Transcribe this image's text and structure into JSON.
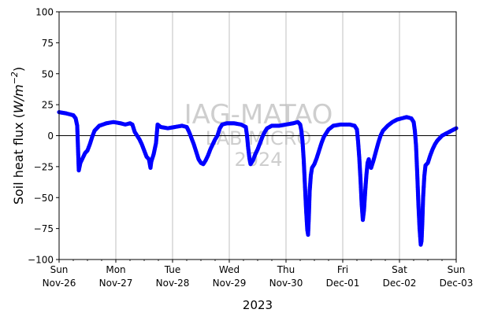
{
  "chart_data": {
    "type": "scatter",
    "ylabel_prefix": "Soil heat flux (",
    "ylabel_unit": "W/m",
    "ylabel_exp": "−2",
    "ylabel_suffix": ")",
    "xlabel": "2023",
    "ylim": [
      -100,
      100
    ],
    "yticks": [
      -100,
      -75,
      -50,
      -25,
      0,
      25,
      50,
      75,
      100
    ],
    "xlim": [
      "2023-11-26",
      "2023-12-03"
    ],
    "xticks": [
      {
        "date": "2023-11-26",
        "day": "Sun",
        "label": "Nov-26"
      },
      {
        "date": "2023-11-27",
        "day": "Mon",
        "label": "Nov-27"
      },
      {
        "date": "2023-11-28",
        "day": "Tue",
        "label": "Nov-28"
      },
      {
        "date": "2023-11-29",
        "day": "Wed",
        "label": "Nov-29"
      },
      {
        "date": "2023-11-30",
        "day": "Thu",
        "label": "Nov-30"
      },
      {
        "date": "2023-12-01",
        "day": "Fri",
        "label": "Dec-01"
      },
      {
        "date": "2023-12-02",
        "day": "Sat",
        "label": "Dec-02"
      },
      {
        "date": "2023-12-03",
        "day": "Sun",
        "label": "Dec-03"
      }
    ],
    "grid": "vertical",
    "zero_line": true,
    "marker_color": "#0000ff",
    "watermark": [
      "IAG-MATAO",
      "LAB MICRO",
      "2024"
    ],
    "series": [
      {
        "points": [
          [
            "2023-11-26 00:00",
            19
          ],
          [
            "2023-11-26 03:00",
            18
          ],
          [
            "2023-11-26 06:00",
            16.5
          ],
          [
            "2023-11-26 07:00",
            14
          ],
          [
            "2023-11-26 07:40",
            8
          ],
          [
            "2023-11-26 08:00",
            -10
          ],
          [
            "2023-11-26 08:20",
            -28
          ],
          [
            "2023-11-26 09:00",
            -22
          ],
          [
            "2023-11-26 10:00",
            -18
          ],
          [
            "2023-11-26 11:00",
            -14
          ],
          [
            "2023-11-26 12:00",
            -12
          ],
          [
            "2023-11-26 13:00",
            -7
          ],
          [
            "2023-11-26 14:00",
            -1
          ],
          [
            "2023-11-26 15:00",
            4
          ],
          [
            "2023-11-26 17:00",
            8
          ],
          [
            "2023-11-26 20:00",
            10
          ],
          [
            "2023-11-26 23:00",
            11
          ],
          [
            "2023-11-27 02:00",
            10
          ],
          [
            "2023-11-27 04:00",
            9
          ],
          [
            "2023-11-27 06:00",
            10
          ],
          [
            "2023-11-27 07:00",
            9
          ],
          [
            "2023-11-27 08:00",
            3
          ],
          [
            "2023-11-27 09:00",
            0
          ],
          [
            "2023-11-27 10:00",
            -3
          ],
          [
            "2023-11-27 11:00",
            -7
          ],
          [
            "2023-11-27 12:00",
            -12
          ],
          [
            "2023-11-27 13:00",
            -17
          ],
          [
            "2023-11-27 14:00",
            -19
          ],
          [
            "2023-11-27 14:40",
            -26
          ],
          [
            "2023-11-27 15:00",
            -21
          ],
          [
            "2023-11-27 16:00",
            -15
          ],
          [
            "2023-11-27 17:00",
            -6
          ],
          [
            "2023-11-27 17:40",
            9
          ],
          [
            "2023-11-27 19:00",
            7
          ],
          [
            "2023-11-27 22:00",
            6
          ],
          [
            "2023-11-28 01:00",
            7
          ],
          [
            "2023-11-28 04:00",
            8
          ],
          [
            "2023-11-28 06:00",
            7
          ],
          [
            "2023-11-28 07:00",
            3
          ],
          [
            "2023-11-28 08:00",
            -2
          ],
          [
            "2023-11-28 09:00",
            -7
          ],
          [
            "2023-11-28 10:00",
            -13
          ],
          [
            "2023-11-28 11:00",
            -19
          ],
          [
            "2023-11-28 12:00",
            -22
          ],
          [
            "2023-11-28 13:00",
            -23
          ],
          [
            "2023-11-28 14:00",
            -20
          ],
          [
            "2023-11-28 15:00",
            -16
          ],
          [
            "2023-11-28 16:00",
            -11
          ],
          [
            "2023-11-28 17:00",
            -7
          ],
          [
            "2023-11-28 18:00",
            -3
          ],
          [
            "2023-11-28 19:00",
            0
          ],
          [
            "2023-11-28 20:00",
            6
          ],
          [
            "2023-11-28 21:00",
            9
          ],
          [
            "2023-11-28 23:00",
            10
          ],
          [
            "2023-11-29 02:00",
            10
          ],
          [
            "2023-11-29 05:00",
            9
          ],
          [
            "2023-11-29 07:00",
            7
          ],
          [
            "2023-11-29 07:30",
            0
          ],
          [
            "2023-11-29 08:00",
            -10
          ],
          [
            "2023-11-29 08:30",
            -18
          ],
          [
            "2023-11-29 09:00",
            -23
          ],
          [
            "2023-11-29 10:00",
            -20
          ],
          [
            "2023-11-29 11:00",
            -15
          ],
          [
            "2023-11-29 12:00",
            -11
          ],
          [
            "2023-11-29 13:00",
            -6
          ],
          [
            "2023-11-29 14:00",
            -1
          ],
          [
            "2023-11-29 15:00",
            3
          ],
          [
            "2023-11-29 16:00",
            6
          ],
          [
            "2023-11-29 18:00",
            8
          ],
          [
            "2023-11-29 21:00",
            8
          ],
          [
            "2023-11-30 00:00",
            9
          ],
          [
            "2023-11-30 03:00",
            10
          ],
          [
            "2023-11-30 05:00",
            11
          ],
          [
            "2023-11-30 06:00",
            9
          ],
          [
            "2023-11-30 06:30",
            4
          ],
          [
            "2023-11-30 07:00",
            -5
          ],
          [
            "2023-11-30 07:30",
            -20
          ],
          [
            "2023-11-30 08:00",
            -40
          ],
          [
            "2023-11-30 08:30",
            -60
          ],
          [
            "2023-11-30 09:00",
            -76
          ],
          [
            "2023-11-30 09:20",
            -80
          ],
          [
            "2023-11-30 09:40",
            -65
          ],
          [
            "2023-11-30 10:00",
            -45
          ],
          [
            "2023-11-30 10:30",
            -32
          ],
          [
            "2023-11-30 11:00",
            -26
          ],
          [
            "2023-11-30 12:00",
            -23
          ],
          [
            "2023-11-30 13:00",
            -18
          ],
          [
            "2023-11-30 14:00",
            -12
          ],
          [
            "2023-11-30 15:00",
            -6
          ],
          [
            "2023-11-30 16:00",
            -1
          ],
          [
            "2023-11-30 17:00",
            2
          ],
          [
            "2023-11-30 18:00",
            5
          ],
          [
            "2023-11-30 20:00",
            8
          ],
          [
            "2023-11-30 23:00",
            9
          ],
          [
            "2023-12-01 03:00",
            9
          ],
          [
            "2023-12-01 05:00",
            8
          ],
          [
            "2023-12-01 06:00",
            5
          ],
          [
            "2023-12-01 06:30",
            -5
          ],
          [
            "2023-12-01 07:00",
            -18
          ],
          [
            "2023-12-01 07:30",
            -35
          ],
          [
            "2023-12-01 08:00",
            -55
          ],
          [
            "2023-12-01 08:30",
            -68
          ],
          [
            "2023-12-01 09:00",
            -60
          ],
          [
            "2023-12-01 09:30",
            -45
          ],
          [
            "2023-12-01 10:00",
            -32
          ],
          [
            "2023-12-01 10:30",
            -22
          ],
          [
            "2023-12-01 11:00",
            -19
          ],
          [
            "2023-12-01 11:30",
            -24
          ],
          [
            "2023-12-01 12:00",
            -26
          ],
          [
            "2023-12-01 13:00",
            -20
          ],
          [
            "2023-12-01 14:00",
            -13
          ],
          [
            "2023-12-01 15:00",
            -6
          ],
          [
            "2023-12-01 16:00",
            0
          ],
          [
            "2023-12-01 17:00",
            4
          ],
          [
            "2023-12-01 19:00",
            8
          ],
          [
            "2023-12-01 21:00",
            11
          ],
          [
            "2023-12-01 23:00",
            13
          ],
          [
            "2023-12-02 01:00",
            14
          ],
          [
            "2023-12-02 03:00",
            15
          ],
          [
            "2023-12-02 05:00",
            14
          ],
          [
            "2023-12-02 06:00",
            11
          ],
          [
            "2023-12-02 06:30",
            4
          ],
          [
            "2023-12-02 07:00",
            -8
          ],
          [
            "2023-12-02 07:30",
            -30
          ],
          [
            "2023-12-02 08:00",
            -55
          ],
          [
            "2023-12-02 08:30",
            -75
          ],
          [
            "2023-12-02 09:00",
            -88
          ],
          [
            "2023-12-02 09:20",
            -85
          ],
          [
            "2023-12-02 09:40",
            -70
          ],
          [
            "2023-12-02 10:00",
            -50
          ],
          [
            "2023-12-02 10:30",
            -33
          ],
          [
            "2023-12-02 11:00",
            -24
          ],
          [
            "2023-12-02 12:00",
            -22
          ],
          [
            "2023-12-02 13:00",
            -16
          ],
          [
            "2023-12-02 14:00",
            -11
          ],
          [
            "2023-12-02 15:00",
            -7
          ],
          [
            "2023-12-02 16:00",
            -4
          ],
          [
            "2023-12-02 17:00",
            -2
          ],
          [
            "2023-12-02 18:00",
            0
          ],
          [
            "2023-12-02 19:00",
            1
          ],
          [
            "2023-12-02 20:00",
            2
          ],
          [
            "2023-12-02 21:00",
            3
          ],
          [
            "2023-12-02 22:00",
            4
          ],
          [
            "2023-12-02 23:00",
            5
          ],
          [
            "2023-12-03 00:00",
            6
          ]
        ]
      }
    ]
  }
}
